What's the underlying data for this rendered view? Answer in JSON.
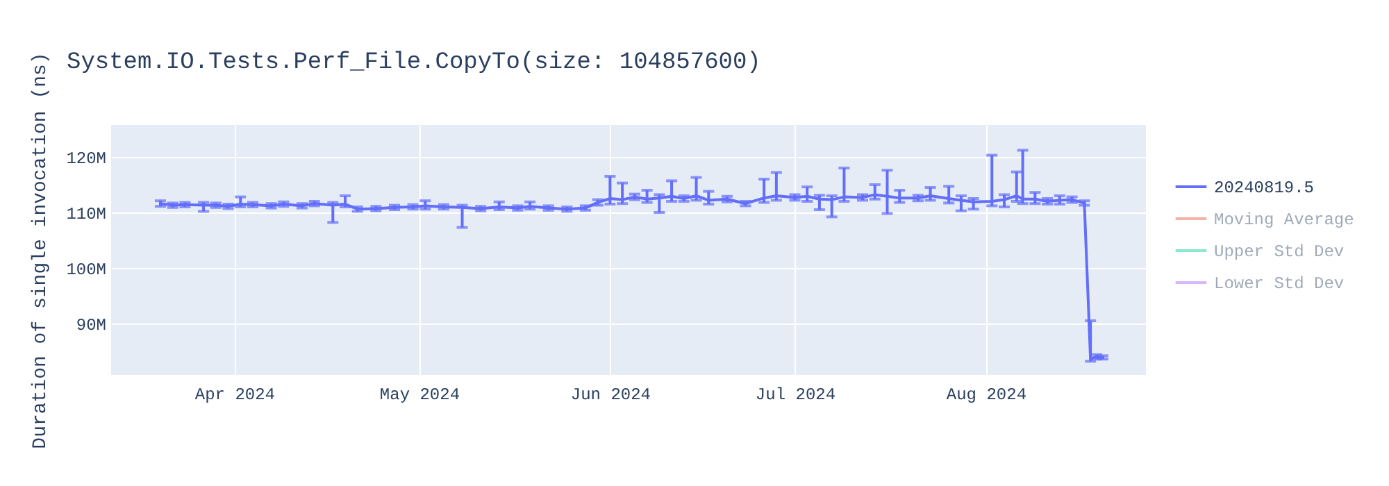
{
  "chart_data": {
    "type": "line",
    "title": "System.IO.Tests.Perf_File.CopyTo(size: 104857600)",
    "ylabel": "Duration of single invocation (ns)",
    "x": [
      "2024-03-20",
      "2024-03-22",
      "2024-03-24",
      "2024-03-27",
      "2024-03-29",
      "2024-03-31",
      "2024-04-02",
      "2024-04-04",
      "2024-04-07",
      "2024-04-09",
      "2024-04-12",
      "2024-04-14",
      "2024-04-17",
      "2024-04-19",
      "2024-04-21",
      "2024-04-24",
      "2024-04-27",
      "2024-04-30",
      "2024-05-02",
      "2024-05-05",
      "2024-05-08",
      "2024-05-11",
      "2024-05-14",
      "2024-05-17",
      "2024-05-19",
      "2024-05-22",
      "2024-05-25",
      "2024-05-28",
      "2024-05-30",
      "2024-06-01",
      "2024-06-03",
      "2024-06-05",
      "2024-06-07",
      "2024-06-09",
      "2024-06-11",
      "2024-06-13",
      "2024-06-15",
      "2024-06-17",
      "2024-06-20",
      "2024-06-23",
      "2024-06-26",
      "2024-06-28",
      "2024-07-01",
      "2024-07-03",
      "2024-07-05",
      "2024-07-07",
      "2024-07-09",
      "2024-07-12",
      "2024-07-14",
      "2024-07-16",
      "2024-07-18",
      "2024-07-21",
      "2024-07-23",
      "2024-07-26",
      "2024-07-28",
      "2024-07-30",
      "2024-08-02",
      "2024-08-04",
      "2024-08-06",
      "2024-08-07",
      "2024-08-09",
      "2024-08-11",
      "2024-08-13",
      "2024-08-15",
      "2024-08-17",
      "2024-08-18",
      "2024-08-19",
      "2024-08-20"
    ],
    "series": [
      {
        "name": "20240819.5",
        "color": "#636efa",
        "values": [
          111600000,
          111300000,
          111400000,
          111300000,
          111300000,
          111100000,
          111500000,
          111400000,
          111200000,
          111500000,
          111200000,
          111600000,
          111300000,
          111500000,
          110600000,
          110700000,
          110900000,
          111000000,
          111200000,
          111000000,
          110900000,
          110700000,
          111000000,
          110800000,
          111100000,
          110800000,
          110600000,
          110800000,
          111800000,
          112500000,
          112300000,
          112800000,
          112400000,
          112600000,
          112900000,
          112500000,
          113000000,
          112200000,
          112400000,
          111600000,
          112600000,
          113000000,
          112700000,
          112900000,
          112400000,
          112300000,
          112800000,
          112700000,
          113200000,
          112900000,
          112600000,
          112600000,
          113000000,
          112500000,
          112200000,
          111900000,
          112000000,
          112300000,
          113000000,
          112400000,
          112400000,
          112000000,
          112200000,
          112300000,
          111700000,
          83700000,
          84000000,
          83900000
        ],
        "errors": [
          500000,
          400000,
          400000,
          [
            110200000,
            111800000
          ],
          400000,
          400000,
          [
            111000000,
            112800000
          ],
          400000,
          400000,
          400000,
          400000,
          400000,
          [
            108200000,
            111800000
          ],
          [
            111000000,
            113000000
          ],
          400000,
          400000,
          400000,
          400000,
          [
            110600000,
            112100000
          ],
          400000,
          [
            107300000,
            111300000
          ],
          400000,
          [
            110500000,
            111900000
          ],
          400000,
          [
            110600000,
            111900000
          ],
          400000,
          400000,
          400000,
          500000,
          [
            111500000,
            116500000
          ],
          [
            111600000,
            115300000
          ],
          500000,
          [
            111800000,
            114000000
          ],
          [
            110000000,
            113200000
          ],
          [
            112000000,
            115700000
          ],
          500000,
          [
            112200000,
            116300000
          ],
          [
            111500000,
            113800000
          ],
          500000,
          400000,
          [
            111800000,
            116000000
          ],
          [
            112200000,
            117200000
          ],
          500000,
          [
            112000000,
            114600000
          ],
          [
            110500000,
            113100000
          ],
          [
            109200000,
            113000000
          ],
          [
            112000000,
            118000000
          ],
          500000,
          [
            112400000,
            115000000
          ],
          [
            109800000,
            117600000
          ],
          [
            111800000,
            114000000
          ],
          500000,
          [
            112200000,
            114500000
          ],
          [
            111700000,
            114700000
          ],
          [
            110300000,
            113000000
          ],
          [
            110600000,
            112500000
          ],
          [
            111200000,
            120300000
          ],
          [
            111000000,
            113200000
          ],
          [
            112000000,
            117300000
          ],
          [
            111600000,
            121200000
          ],
          [
            111600000,
            113600000
          ],
          500000,
          [
            111500000,
            113000000
          ],
          500000,
          400000,
          [
            83200000,
            90500000
          ],
          400000,
          300000
        ]
      },
      {
        "name": "Moving Average",
        "color": "#ef553b",
        "values": [
          null,
          null,
          null,
          null,
          null,
          null,
          null,
          null,
          null,
          null,
          null,
          null,
          null,
          null,
          null,
          null,
          null,
          null,
          null,
          null,
          null,
          null,
          null,
          null,
          null,
          null,
          null,
          null,
          null,
          null,
          null,
          null,
          null,
          null,
          null,
          null,
          null,
          null,
          null,
          null,
          null,
          null,
          null,
          null,
          null,
          null,
          null,
          null,
          null,
          null,
          null,
          null,
          null,
          null,
          null,
          null,
          null,
          null,
          null,
          null,
          null,
          null,
          null,
          null,
          null,
          null,
          null,
          null
        ]
      },
      {
        "name": "Upper Std Dev",
        "color": "#00cc96",
        "values": [
          null,
          null,
          null,
          null,
          null,
          null,
          null,
          null,
          null,
          null,
          null,
          null,
          null,
          null,
          null,
          null,
          null,
          null,
          null,
          null,
          null,
          null,
          null,
          null,
          null,
          null,
          null,
          null,
          null,
          null,
          null,
          null,
          null,
          null,
          null,
          null,
          null,
          null,
          null,
          null,
          null,
          null,
          null,
          null,
          null,
          null,
          null,
          null,
          null,
          null,
          null,
          null,
          null,
          null,
          null,
          null,
          null,
          null,
          null,
          null,
          null,
          null,
          null,
          null,
          null,
          null,
          null,
          null
        ]
      },
      {
        "name": "Lower Std Dev",
        "color": "#ab63fa",
        "values": [
          null,
          null,
          null,
          null,
          null,
          null,
          null,
          null,
          null,
          null,
          null,
          null,
          null,
          null,
          null,
          null,
          null,
          null,
          null,
          null,
          null,
          null,
          null,
          null,
          null,
          null,
          null,
          null,
          null,
          null,
          null,
          null,
          null,
          null,
          null,
          null,
          null,
          null,
          null,
          null,
          null,
          null,
          null,
          null,
          null,
          null,
          null,
          null,
          null,
          null,
          null,
          null,
          null,
          null,
          null,
          null,
          null,
          null,
          null,
          null,
          null,
          null,
          null,
          null,
          null,
          null,
          null,
          null
        ]
      }
    ],
    "xlim": [
      "2024-03-12",
      "2024-08-27"
    ],
    "xticks": [
      {
        "value": "2024-04-01",
        "label": "Apr 2024"
      },
      {
        "value": "2024-05-01",
        "label": "May 2024"
      },
      {
        "value": "2024-06-01",
        "label": "Jun 2024"
      },
      {
        "value": "2024-07-01",
        "label": "Jul 2024"
      },
      {
        "value": "2024-08-01",
        "label": "Aug 2024"
      }
    ],
    "ylim": [
      80750000,
      125750000
    ],
    "yticks": [
      {
        "value": 90000000,
        "label": "90M"
      },
      {
        "value": 100000000,
        "label": "100M"
      },
      {
        "value": 110000000,
        "label": "110M"
      },
      {
        "value": 120000000,
        "label": "120M"
      }
    ],
    "grid": true,
    "legend": "right",
    "marker": "none",
    "line_style": "solid"
  }
}
